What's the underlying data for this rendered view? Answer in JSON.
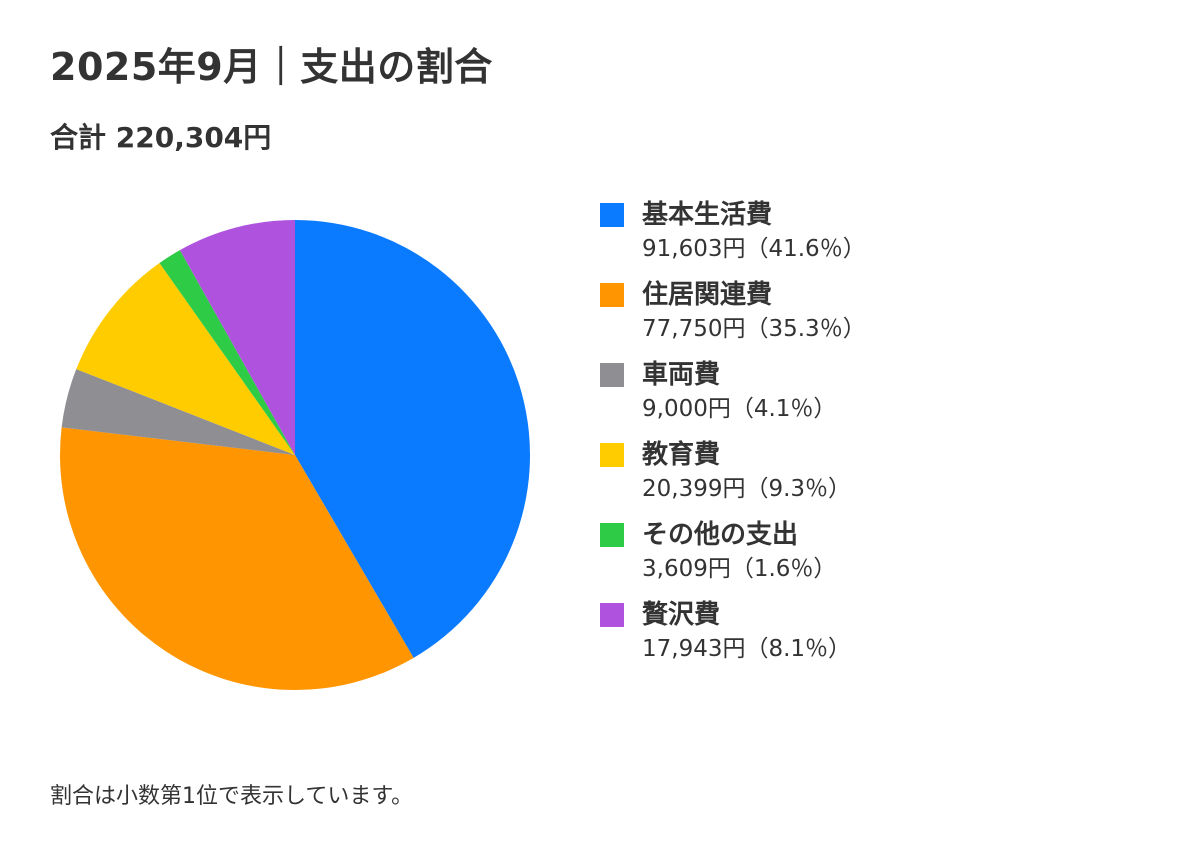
{
  "title": "2025年9月｜支出の割合",
  "subtitle": "合計 220,304円",
  "footnote": "割合は小数第1位で表示しています。",
  "chart_data": {
    "type": "pie",
    "title": "2025年9月｜支出の割合",
    "subtitle": "合計 220,304円",
    "total": 220304,
    "unit": "円",
    "start_angle": "12 o'clock, clockwise",
    "legend_position": "right",
    "slices": [
      {
        "label": "基本生活費",
        "value": 91603,
        "percent": 41.6,
        "color": "#0a7aff",
        "detail": "91,603円（41.6％）"
      },
      {
        "label": "住居関連費",
        "value": 77750,
        "percent": 35.3,
        "color": "#ff9500",
        "detail": "77,750円（35.3％）"
      },
      {
        "label": "車両費",
        "value": 9000,
        "percent": 4.1,
        "color": "#8e8e93",
        "detail": "9,000円（4.1％）"
      },
      {
        "label": "教育費",
        "value": 20399,
        "percent": 9.3,
        "color": "#ffcc00",
        "detail": "20,399円（9.3％）"
      },
      {
        "label": "その他の支出",
        "value": 3609,
        "percent": 1.6,
        "color": "#2ecc46",
        "detail": "3,609円（1.6％）"
      },
      {
        "label": "贅沢費",
        "value": 17943,
        "percent": 8.1,
        "color": "#af52de",
        "detail": "17,943円（8.1％）"
      }
    ]
  }
}
